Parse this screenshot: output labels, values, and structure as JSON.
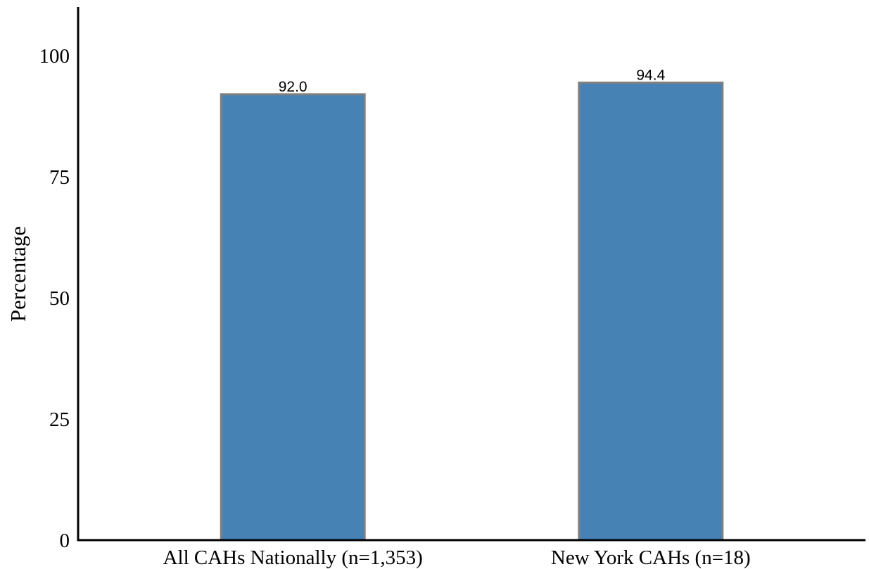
{
  "chart_data": {
    "type": "bar",
    "categories": [
      "All CAHs Nationally (n=1,353)",
      "New York CAHs (n=18)"
    ],
    "values": [
      92.0,
      94.4
    ],
    "value_labels": [
      "92.0",
      "94.4"
    ],
    "title": "",
    "xlabel": "",
    "ylabel": "Percentage",
    "ylim": [
      0,
      110
    ],
    "yticks": [
      0,
      25,
      50,
      75,
      100
    ],
    "ytick_labels": [
      "0",
      "25",
      "50",
      "75",
      "100"
    ],
    "grid": false,
    "legend": "none",
    "colors": {
      "bar_fill": "#4682B4",
      "bar_edge": "#808080",
      "axis": "#000000"
    }
  }
}
